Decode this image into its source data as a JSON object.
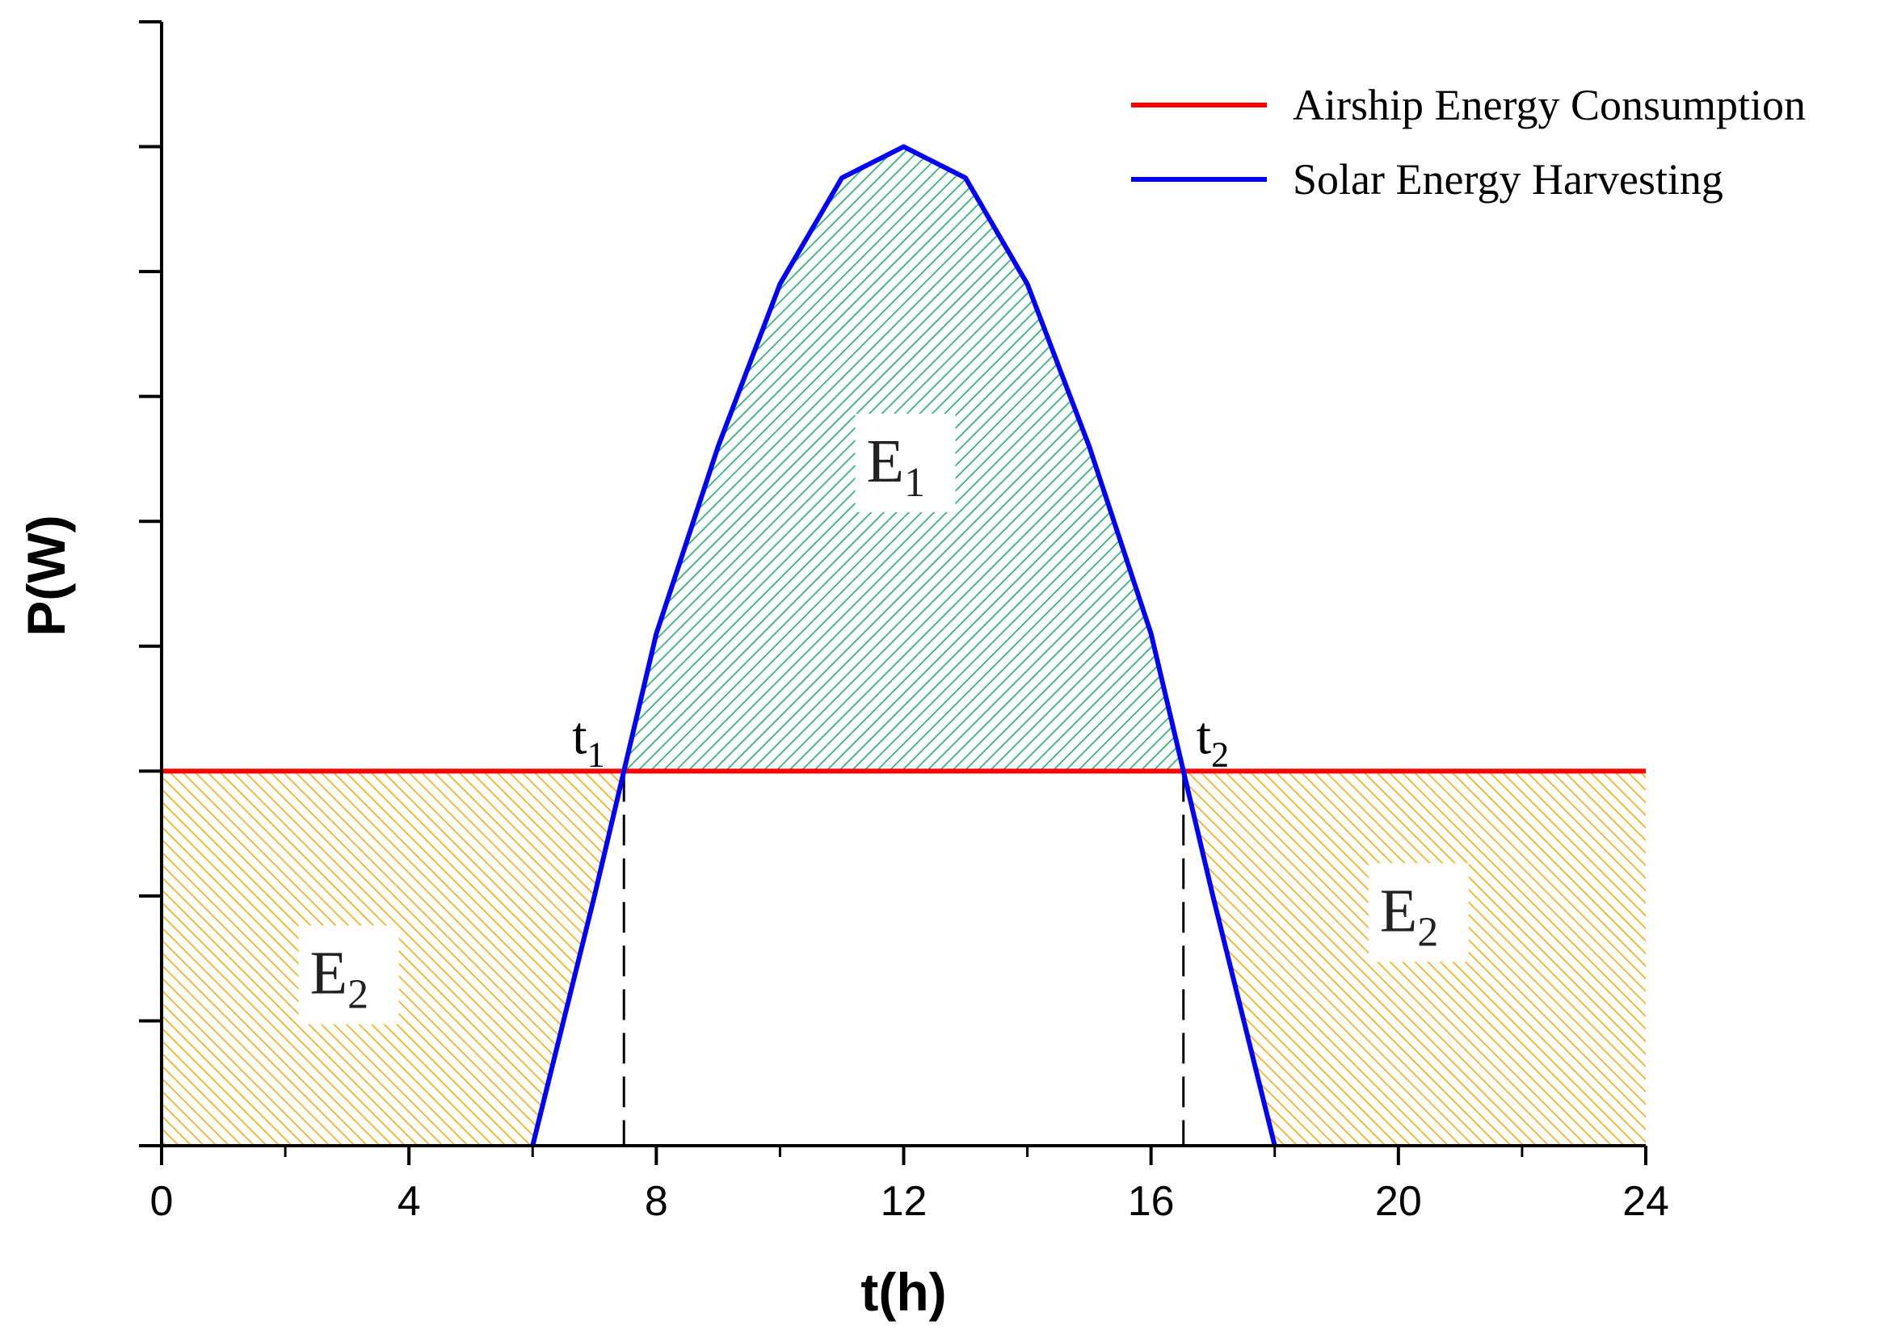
{
  "chart_data": {
    "type": "line",
    "xlabel": "t(h)",
    "ylabel": "P(W)",
    "xlim": [
      0,
      24
    ],
    "ylim": [
      0,
      9
    ],
    "x_ticks": [
      0,
      4,
      8,
      12,
      16,
      20,
      24
    ],
    "x_tick_labels": [
      "0",
      "4",
      "8",
      "12",
      "16",
      "20",
      "24"
    ],
    "x_minor_ticks": [
      2,
      6,
      10,
      14,
      18,
      22
    ],
    "y_ticks": [
      0,
      1,
      2,
      3,
      4,
      5,
      6,
      7,
      8,
      9
    ],
    "y_tick_labels_shown": false,
    "grid": false,
    "legend_position": "top-right",
    "series": [
      {
        "name": "Airship Energy Consumption",
        "color": "#ff0000",
        "x": [
          0,
          24
        ],
        "y": [
          3,
          3
        ]
      },
      {
        "name": "Solar Energy Harvesting",
        "color": "#0000ff",
        "x": [
          6,
          7,
          8,
          9,
          10,
          11,
          12,
          13,
          14,
          15,
          16,
          17,
          18
        ],
        "y": [
          0,
          2.0,
          4.1,
          5.6,
          6.9,
          7.75,
          8.0,
          7.75,
          6.9,
          5.6,
          4.1,
          2.0,
          0
        ]
      }
    ],
    "annotations": {
      "t1": {
        "base": "t",
        "sub": "1",
        "x": 7.45
      },
      "t2": {
        "base": "t",
        "sub": "2",
        "x": 16.55
      },
      "E1": {
        "base": "E",
        "sub": "1",
        "x": 12.0,
        "y": 5.5
      },
      "E2_left": {
        "base": "E",
        "sub": "2",
        "x": 3.0,
        "y": 1.4
      },
      "E2_right": {
        "base": "E",
        "sub": "2",
        "x": 20.3,
        "y": 1.9
      }
    },
    "fill_colors": {
      "surplus": "#2db37a",
      "deficit": "#f2b21d"
    }
  }
}
